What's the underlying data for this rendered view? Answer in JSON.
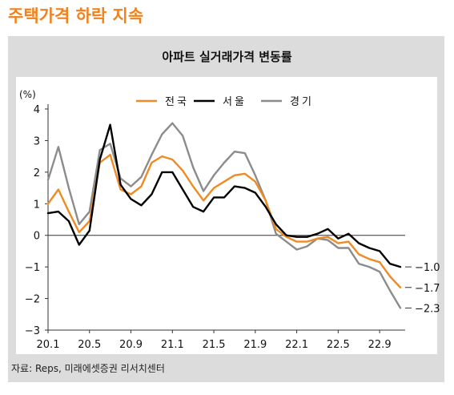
{
  "headline": "주택가격 하락 지속",
  "source": "자료: Reps, 미래에셋증권 리서치센터",
  "colors": {
    "headline": "#f0821e",
    "national": "#f08a24",
    "seoul": "#000000",
    "gyeonggi": "#8c8c8c"
  },
  "chart_data": {
    "type": "line",
    "title": "아파트 실거래가격 변동률",
    "unit_label": "(%)",
    "ylim": [
      -3,
      4
    ],
    "y_ticks": [
      "4",
      "3",
      "2",
      "1",
      "0",
      "−1",
      "−2",
      "−3"
    ],
    "x_tick_labels": [
      "20.1",
      "20.5",
      "20.9",
      "21.1",
      "21.5",
      "21.9",
      "22.1",
      "22.5",
      "22.9"
    ],
    "x_tick_months": [
      0,
      4,
      8,
      12,
      16,
      20,
      24,
      28,
      32
    ],
    "x_months": [
      0,
      1,
      2,
      3,
      4,
      5,
      6,
      7,
      8,
      9,
      10,
      11,
      12,
      13,
      14,
      15,
      16,
      17,
      18,
      19,
      20,
      21,
      22,
      23,
      24,
      25,
      26,
      27,
      28,
      29,
      30,
      31,
      32,
      33,
      34
    ],
    "legend_position": "top-center",
    "series": [
      {
        "name": "전국",
        "color": "#f08a24",
        "values": [
          1.0,
          1.45,
          0.75,
          0.1,
          0.45,
          2.3,
          2.55,
          1.45,
          1.3,
          1.55,
          2.3,
          2.5,
          2.4,
          2.05,
          1.55,
          1.1,
          1.5,
          1.7,
          1.9,
          1.95,
          1.7,
          1.1,
          0.2,
          -0.05,
          -0.2,
          -0.2,
          -0.1,
          -0.05,
          -0.25,
          -0.2,
          -0.6,
          -0.75,
          -0.85,
          -1.3,
          -1.65
        ]
      },
      {
        "name": "서울",
        "color": "#000000",
        "values": [
          0.7,
          0.75,
          0.45,
          -0.3,
          0.15,
          2.4,
          3.5,
          1.6,
          1.15,
          0.95,
          1.3,
          2.0,
          2.0,
          1.45,
          0.9,
          0.75,
          1.2,
          1.2,
          1.55,
          1.5,
          1.35,
          0.9,
          0.35,
          0.0,
          -0.05,
          -0.05,
          0.05,
          0.2,
          -0.1,
          0.05,
          -0.25,
          -0.4,
          -0.5,
          -0.9,
          -1.0
        ]
      },
      {
        "name": "경기",
        "color": "#8c8c8c",
        "values": [
          1.75,
          2.8,
          1.5,
          0.35,
          0.75,
          2.7,
          2.9,
          1.8,
          1.55,
          1.85,
          2.55,
          3.2,
          3.55,
          3.15,
          2.15,
          1.4,
          1.9,
          2.3,
          2.65,
          2.6,
          1.9,
          1.1,
          0.05,
          -0.2,
          -0.45,
          -0.35,
          -0.1,
          -0.15,
          -0.4,
          -0.4,
          -0.9,
          -1.0,
          -1.15,
          -1.75,
          -2.3
        ]
      }
    ],
    "end_labels": [
      {
        "text": "−1.0",
        "value": -1.0
      },
      {
        "text": "−1.7",
        "value": -1.65
      },
      {
        "text": "−2.3",
        "value": -2.3
      }
    ]
  }
}
